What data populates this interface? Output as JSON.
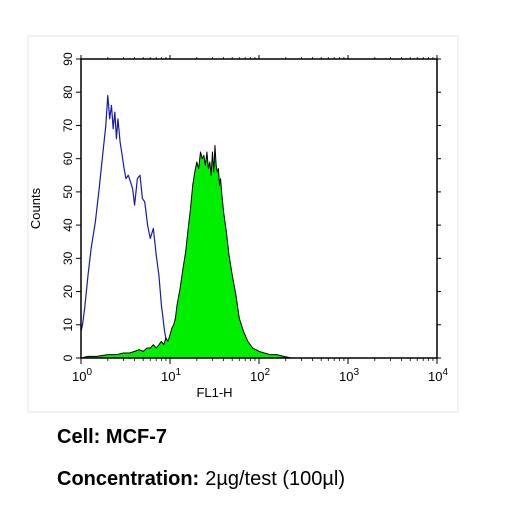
{
  "chart_data": {
    "type": "area",
    "title": "",
    "xlabel": "FL1-H",
    "ylabel": "Counts",
    "x_scale": "log",
    "xlim": [
      1,
      10000
    ],
    "ylim": [
      0,
      90
    ],
    "x_ticks": [
      {
        "value": 1,
        "base": "10",
        "exp": "0"
      },
      {
        "value": 10,
        "base": "10",
        "exp": "1"
      },
      {
        "value": 100,
        "base": "10",
        "exp": "2"
      },
      {
        "value": 1000,
        "base": "10",
        "exp": "3"
      },
      {
        "value": 10000,
        "base": "10",
        "exp": "4"
      }
    ],
    "y_ticks": [
      0,
      10,
      20,
      30,
      40,
      50,
      60,
      70,
      80,
      90
    ],
    "grid": false,
    "legend": "none",
    "series": [
      {
        "style": "outline",
        "color": "#1a1aa6",
        "x": [
          1,
          1.04,
          1.1,
          1.2,
          1.3,
          1.45,
          1.6,
          1.75,
          1.9,
          2.0,
          2.1,
          2.2,
          2.3,
          2.4,
          2.5,
          2.6,
          2.75,
          2.9,
          3.05,
          3.2,
          3.4,
          3.6,
          3.8,
          4.0,
          4.3,
          4.6,
          4.9,
          5.2,
          5.6,
          6.0,
          6.5,
          7.0,
          7.5,
          8.0,
          8.7,
          9.4,
          10.2
        ],
        "y": [
          8,
          10,
          15,
          25,
          33,
          41,
          51,
          61,
          70,
          79,
          72,
          76,
          69,
          74,
          66,
          72,
          65,
          61,
          57,
          54,
          55,
          53,
          51,
          46,
          54,
          55,
          48,
          47,
          40,
          36,
          39,
          31,
          25,
          16,
          8,
          3,
          0
        ]
      },
      {
        "style": "filled",
        "color": "#00ee00",
        "x": [
          1,
          1.2,
          1.5,
          2.0,
          2.5,
          3.0,
          3.5,
          4.0,
          4.5,
          5.0,
          5.5,
          6.0,
          6.5,
          7.0,
          7.5,
          8.0,
          8.5,
          9.0,
          9.5,
          10.0,
          10.5,
          11.0,
          11.5,
          12.0,
          13.0,
          14.0,
          15.0,
          16.0,
          17.0,
          18.0,
          19.0,
          20.0,
          21.0,
          22.0,
          23.0,
          24.0,
          25.0,
          26.0,
          27.0,
          28.0,
          29.0,
          30.0,
          31.0,
          32.0,
          33.0,
          34.0,
          35.0,
          36.0,
          37.0,
          38.0,
          40.0,
          43.0,
          46.0,
          50.0,
          55.0,
          60.0,
          67.0,
          75.0,
          85.0,
          100.0,
          115.0,
          135.0,
          160.0,
          190.0,
          230.0
        ],
        "y": [
          0,
          0.5,
          0.5,
          1,
          1,
          1.5,
          1.5,
          2,
          2.5,
          2,
          3,
          3,
          4,
          3,
          4,
          5,
          4,
          6,
          5,
          7,
          9,
          10,
          12,
          16,
          21,
          27,
          32,
          39,
          45,
          52,
          56,
          59,
          57,
          62,
          60,
          61,
          58,
          62,
          57,
          59,
          55,
          62,
          56,
          64,
          58,
          56,
          57,
          52,
          54,
          50,
          44,
          38,
          31,
          25,
          19,
          12,
          8,
          5,
          3,
          2,
          1.5,
          1,
          1,
          0.5,
          0
        ]
      }
    ]
  },
  "caption": {
    "cell_label": "Cell:",
    "cell_value": "MCF-7",
    "concentration_label": "Concentration:",
    "concentration_value": "2µg/test (100µl)"
  }
}
